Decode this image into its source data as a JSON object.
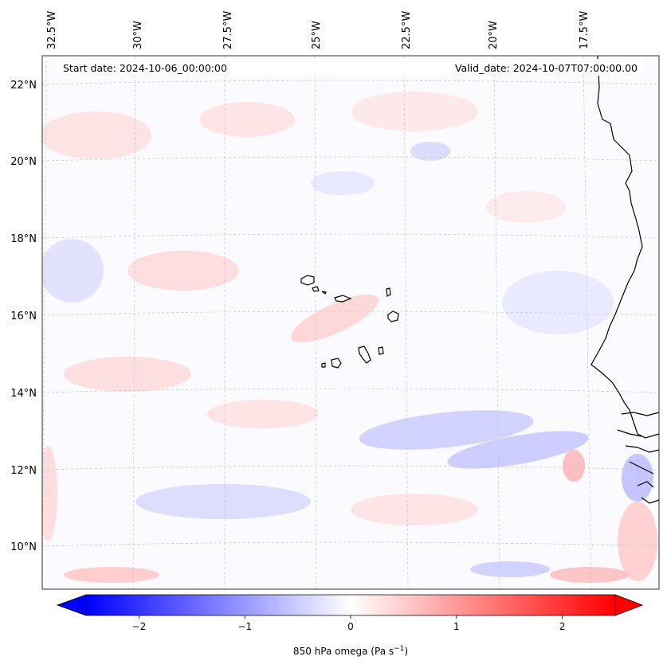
{
  "map": {
    "header": {
      "start_date": "Start date: 2024-10-06_00:00:00",
      "valid_date": "Valid_date: 2024-10-07T07:00:00.00"
    },
    "lon_labels": [
      "32.5°W",
      "30°W",
      "27.5°W",
      "25°W",
      "22.5°W",
      "20°W",
      "17.5°W"
    ],
    "lat_labels": [
      "22°N",
      "20°N",
      "18°N",
      "16°N",
      "14°N",
      "12°N",
      "10°N"
    ],
    "colorbar": {
      "ticks": [
        "−2",
        "−1",
        "0",
        "1",
        "2"
      ],
      "tick_values": [
        -2,
        -1,
        0,
        1,
        2
      ],
      "range": [
        -2.5,
        2.5
      ],
      "label_main": "850 hPa omega (Pa s",
      "label_sup": "−1",
      "label_end": ")",
      "colors": {
        "negative": "#0000ff",
        "zero": "#ffffff",
        "positive": "#ff0000"
      }
    }
  }
}
